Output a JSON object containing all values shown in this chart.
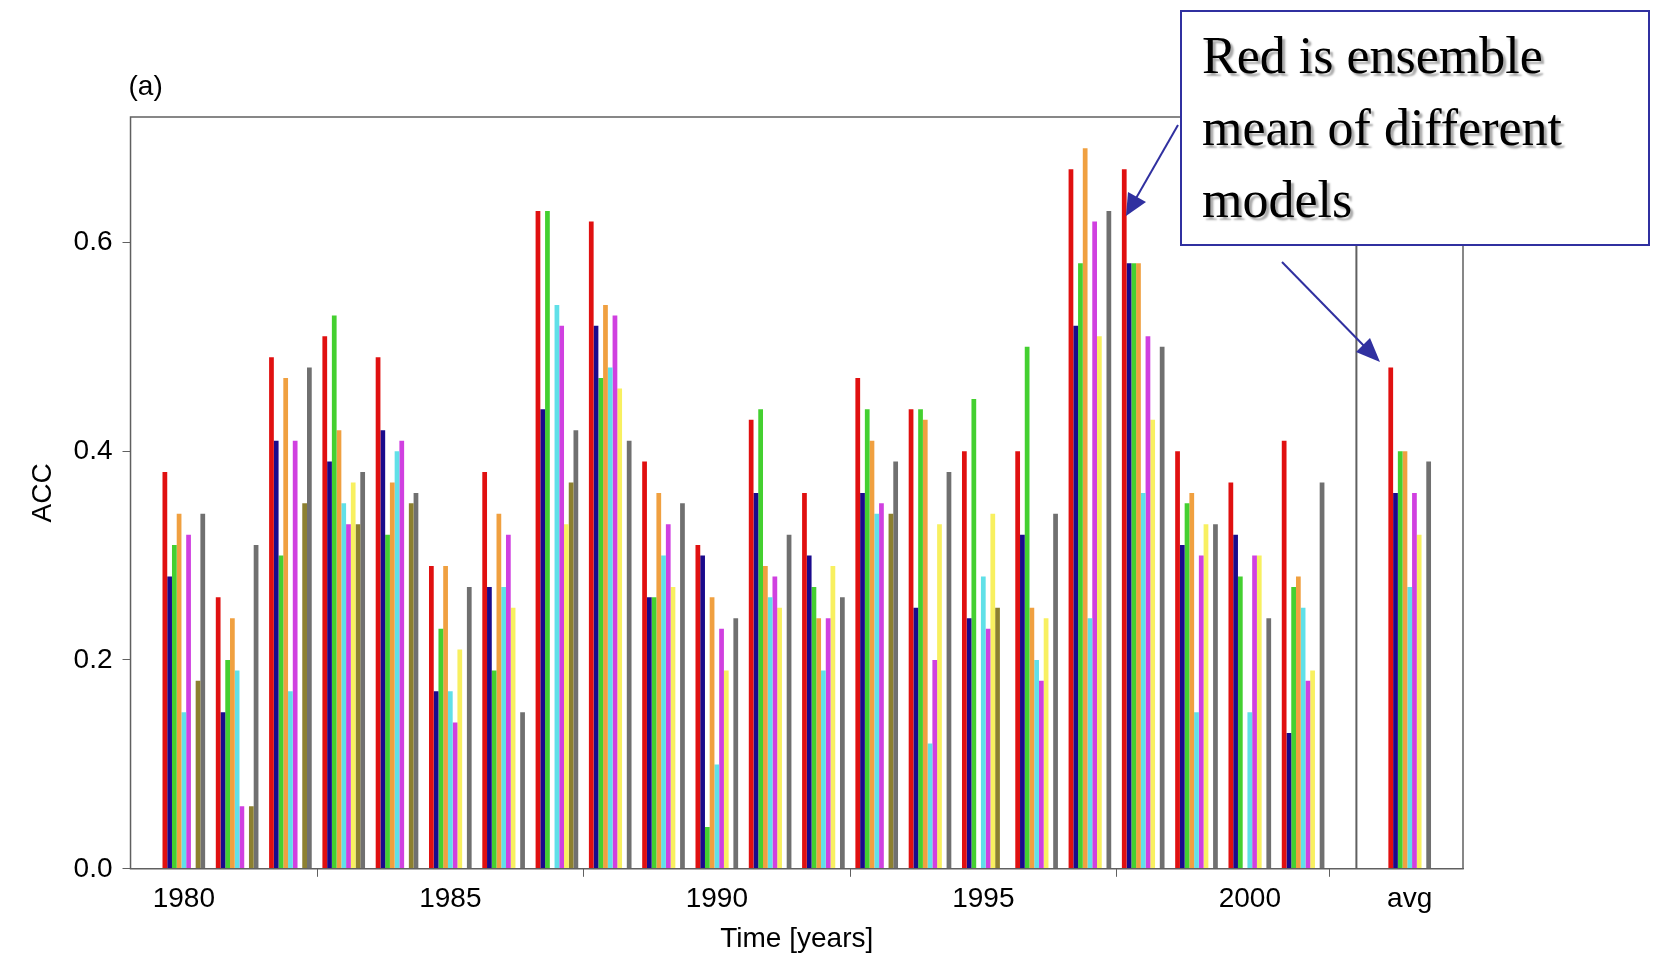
{
  "chart_data": {
    "type": "bar",
    "title": "(a)",
    "xlabel": "Time [years]",
    "ylabel": "ACC",
    "x": [
      1980,
      1981,
      1982,
      1983,
      1984,
      1985,
      1986,
      1987,
      1988,
      1989,
      1990,
      1991,
      1992,
      1993,
      1994,
      1995,
      1996,
      1997,
      1998,
      1999,
      2000,
      2001,
      2003
    ],
    "xlim": [
      1979,
      2004
    ],
    "xticks": [
      1980,
      1985,
      1990,
      1995,
      2000,
      {
        "value": 2003,
        "label": "avg"
      }
    ],
    "ylim": [
      0,
      0.72
    ],
    "yticks": [
      {
        "value": 0,
        "label": "0.0"
      },
      0.2,
      0.4,
      0.6
    ],
    "series": [
      {
        "color": "#e01010",
        "values": [
          0.38,
          0.26,
          0.49,
          0.51,
          0.49,
          0.29,
          0.38,
          0.63,
          0.62,
          0.39,
          0.31,
          0.43,
          0.36,
          0.47,
          0.44,
          0.4,
          0.4,
          0.67,
          0.67,
          0.4,
          0.37,
          0.41,
          0.48
        ]
      },
      {
        "color": "#1a0a8c",
        "values": [
          0.28,
          0.15,
          0.41,
          0.39,
          0.42,
          0.17,
          0.27,
          0.44,
          0.52,
          0.26,
          0.3,
          0.36,
          0.3,
          0.36,
          0.25,
          0.24,
          0.32,
          0.52,
          0.58,
          0.31,
          0.32,
          0.13,
          0.36
        ]
      },
      {
        "color": "#44d030",
        "values": [
          0.31,
          0.2,
          0.3,
          0.53,
          0.32,
          0.23,
          0.19,
          0.63,
          0.47,
          0.26,
          0.04,
          0.44,
          0.27,
          0.44,
          0.44,
          0.45,
          0.5,
          0.58,
          0.58,
          0.35,
          0.28,
          0.27,
          0.4
        ]
      },
      {
        "color": "#f0a040",
        "values": [
          0.34,
          0.24,
          0.47,
          0.42,
          0.37,
          0.29,
          0.34,
          null,
          0.54,
          0.36,
          0.26,
          0.29,
          0.24,
          0.41,
          0.43,
          null,
          0.25,
          0.69,
          0.58,
          0.36,
          null,
          0.28,
          0.4
        ]
      },
      {
        "color": "#60e0e8",
        "values": [
          0.15,
          0.19,
          0.17,
          0.35,
          0.4,
          0.17,
          0.27,
          0.54,
          0.48,
          0.3,
          0.1,
          0.26,
          0.19,
          0.34,
          0.12,
          0.28,
          0.2,
          0.24,
          0.36,
          0.15,
          0.15,
          0.25,
          0.27
        ]
      },
      {
        "color": "#d040e0",
        "values": [
          0.32,
          0.06,
          0.41,
          0.33,
          0.41,
          0.14,
          0.32,
          0.52,
          0.53,
          0.33,
          0.23,
          0.28,
          0.24,
          0.35,
          0.2,
          0.23,
          0.18,
          0.62,
          0.51,
          0.3,
          0.3,
          0.18,
          0.36
        ]
      },
      {
        "color": "#f8f060",
        "values": [
          null,
          null,
          null,
          0.37,
          null,
          0.21,
          0.25,
          0.33,
          0.46,
          0.27,
          0.19,
          0.25,
          0.29,
          null,
          0.33,
          0.34,
          0.24,
          0.51,
          0.43,
          0.33,
          0.3,
          0.19,
          0.32
        ]
      },
      {
        "color": "#8c8030",
        "values": [
          0.18,
          0.06,
          0.35,
          0.33,
          0.35,
          null,
          null,
          0.37,
          null,
          null,
          null,
          null,
          null,
          0.34,
          null,
          0.25,
          null,
          null,
          null,
          null,
          null,
          null,
          null
        ]
      },
      {
        "color": "#707070",
        "values": [
          0.34,
          0.31,
          0.48,
          0.38,
          0.36,
          0.27,
          0.15,
          0.42,
          0.41,
          0.35,
          0.24,
          0.32,
          0.26,
          0.39,
          0.38,
          null,
          0.34,
          0.63,
          0.5,
          0.33,
          0.24,
          0.37,
          0.39
        ]
      }
    ],
    "ref_lines": [
      {
        "axis": "x",
        "value": 2002,
        "color": "#606060"
      }
    ],
    "annotations": [
      "Red is ensemble mean of different models"
    ],
    "grid": false,
    "legend": false
  }
}
